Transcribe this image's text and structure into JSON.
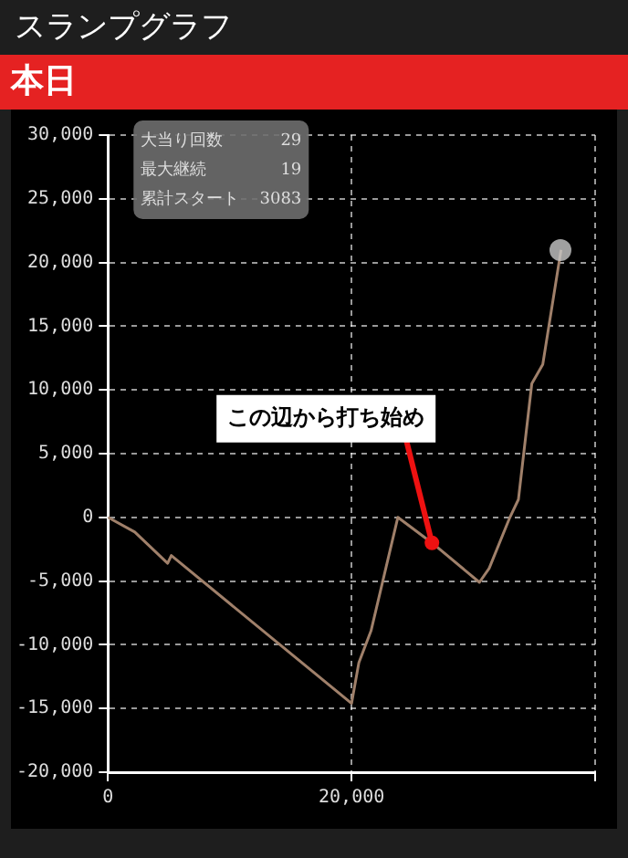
{
  "chart_data": {
    "type": "line",
    "title": "スランプグラフ",
    "subtitle": "本日",
    "x": [
      0,
      2200,
      4900,
      5200,
      20000,
      20600,
      21600,
      23800,
      26600,
      30500,
      31300,
      33000,
      33700,
      34800,
      35700,
      37200
    ],
    "series": [
      {
        "color": "#a0806a",
        "values": [
          0,
          -1150,
          -3600,
          -3000,
          -14600,
          -11400,
          -8900,
          0,
          -2000,
          -5100,
          -4000,
          0,
          1400,
          10500,
          12000,
          21000
        ]
      }
    ],
    "xlim": [
      0,
      40000
    ],
    "xticks": [
      0,
      {
        "value": 20000,
        "label": "20,000"
      },
      {
        "value": 40000,
        "label": null
      }
    ],
    "ylim": [
      -20000,
      30000
    ],
    "yticks": [
      {
        "value": -20000,
        "label": "-20,000"
      },
      {
        "value": -15000,
        "label": "-15,000"
      },
      {
        "value": -10000,
        "label": "-10,000"
      },
      {
        "value": -5000,
        "label": "-5,000"
      },
      0,
      {
        "value": 5000,
        "label": "5,000"
      },
      {
        "value": 10000,
        "label": "10,000"
      },
      {
        "value": 15000,
        "label": "15,000"
      },
      {
        "value": 20000,
        "label": "20,000"
      },
      {
        "value": 25000,
        "label": "25,000"
      },
      {
        "value": 30000,
        "label": "30,000"
      }
    ],
    "grid": true,
    "legend": false,
    "marker": "none",
    "line_style": "solid",
    "annotations": [
      "大当り回数 29",
      "最大継続 19",
      "累計スタート 3083",
      {
        "text": "この辺から打ち始め",
        "x": 26600,
        "y": -2000
      }
    ]
  }
}
